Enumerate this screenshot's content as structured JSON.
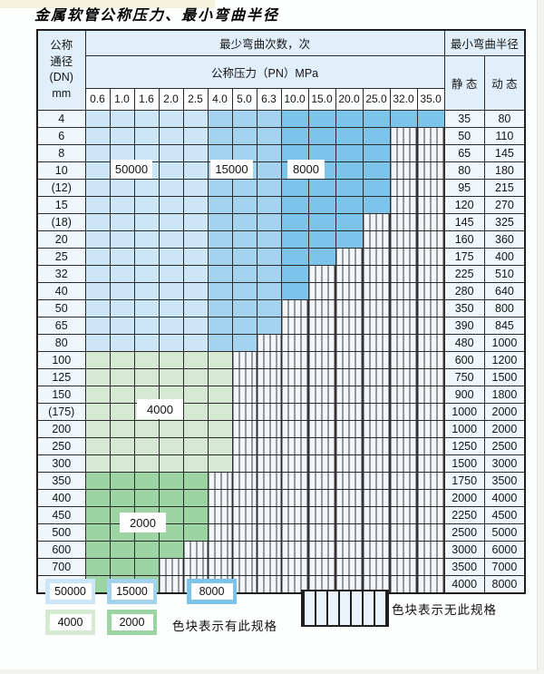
{
  "title": "金属软管公称压力、最小弯曲半径",
  "colors": {
    "blue_light": "#cde6f7",
    "blue_mid": "#a3d3ef",
    "blue_dark": "#7cc4e9",
    "green_light": "#d6e9d2",
    "green_dark": "#9dd4a3"
  },
  "table": {
    "header": {
      "dn_lines": [
        "公称",
        "通径",
        "(DN)",
        "mm"
      ],
      "bend_cycles": "最少弯曲次数，次",
      "pressure": "公称压力（PN）MPa",
      "min_radius": "最小弯曲半径",
      "static": "静 态",
      "dynamic": "动 态",
      "pressures": [
        "0.6",
        "1.0",
        "1.6",
        "2.0",
        "2.5",
        "4.0",
        "5.0",
        "6.3",
        "10.0",
        "15.0",
        "20.0",
        "25.0",
        "32.0",
        "35.0"
      ]
    },
    "rows": [
      {
        "dn": "4",
        "max": 13,
        "scheme": "blue",
        "static": "35",
        "dynamic": "80"
      },
      {
        "dn": "6",
        "max": 11,
        "scheme": "blue",
        "static": "50",
        "dynamic": "110"
      },
      {
        "dn": "8",
        "max": 11,
        "scheme": "blue",
        "static": "65",
        "dynamic": "145"
      },
      {
        "dn": "10",
        "max": 11,
        "scheme": "blue",
        "static": "80",
        "dynamic": "180"
      },
      {
        "dn": "(12)",
        "max": 11,
        "scheme": "blue",
        "static": "95",
        "dynamic": "215"
      },
      {
        "dn": "15",
        "max": 11,
        "scheme": "blue",
        "static": "120",
        "dynamic": "270"
      },
      {
        "dn": "(18)",
        "max": 10,
        "scheme": "blue",
        "static": "145",
        "dynamic": "325"
      },
      {
        "dn": "20",
        "max": 10,
        "scheme": "blue",
        "static": "160",
        "dynamic": "360"
      },
      {
        "dn": "25",
        "max": 9,
        "scheme": "blue",
        "static": "175",
        "dynamic": "400"
      },
      {
        "dn": "32",
        "max": 8,
        "scheme": "blue",
        "static": "225",
        "dynamic": "510"
      },
      {
        "dn": "40",
        "max": 8,
        "scheme": "blue",
        "static": "280",
        "dynamic": "640"
      },
      {
        "dn": "50",
        "max": 7,
        "scheme": "blue",
        "static": "350",
        "dynamic": "800"
      },
      {
        "dn": "65",
        "max": 7,
        "scheme": "blue",
        "static": "390",
        "dynamic": "845"
      },
      {
        "dn": "80",
        "max": 6,
        "scheme": "blue",
        "static": "480",
        "dynamic": "1000"
      },
      {
        "dn": "100",
        "max": 5,
        "scheme": "green-light",
        "static": "600",
        "dynamic": "1200"
      },
      {
        "dn": "125",
        "max": 5,
        "scheme": "green-light",
        "static": "750",
        "dynamic": "1500"
      },
      {
        "dn": "150",
        "max": 5,
        "scheme": "green-light",
        "static": "900",
        "dynamic": "1800"
      },
      {
        "dn": "(175)",
        "max": 5,
        "scheme": "green-light",
        "static": "1000",
        "dynamic": "2000"
      },
      {
        "dn": "200",
        "max": 5,
        "scheme": "green-light",
        "static": "1000",
        "dynamic": "2000"
      },
      {
        "dn": "250",
        "max": 5,
        "scheme": "green-light",
        "static": "1250",
        "dynamic": "2500"
      },
      {
        "dn": "300",
        "max": 5,
        "scheme": "green-light",
        "static": "1500",
        "dynamic": "3000"
      },
      {
        "dn": "350",
        "max": 4,
        "scheme": "green-dark",
        "static": "1750",
        "dynamic": "3500"
      },
      {
        "dn": "400",
        "max": 4,
        "scheme": "green-dark",
        "static": "2000",
        "dynamic": "4000"
      },
      {
        "dn": "450",
        "max": 4,
        "scheme": "green-dark",
        "static": "2250",
        "dynamic": "4500"
      },
      {
        "dn": "500",
        "max": 4,
        "scheme": "green-dark",
        "static": "2500",
        "dynamic": "5000"
      },
      {
        "dn": "600",
        "max": 3,
        "scheme": "green-dark",
        "static": "3000",
        "dynamic": "6000"
      },
      {
        "dn": "700",
        "max": 2,
        "scheme": "green-dark",
        "static": "3500",
        "dynamic": "7000"
      },
      {
        "dn": "800",
        "max": 2,
        "scheme": "green-dark",
        "static": "4000",
        "dynamic": "8000"
      }
    ]
  },
  "in_table_labels": {
    "b50000": "50000",
    "b15000": "15000",
    "b8000": "8000",
    "g4000": "4000",
    "g2000": "2000"
  },
  "legend": {
    "items": [
      {
        "label": "50000",
        "color_key": "blue_light"
      },
      {
        "label": "15000",
        "color_key": "blue_mid"
      },
      {
        "label": "8000",
        "color_key": "blue_dark"
      },
      {
        "label": "4000",
        "color_key": "green_light"
      },
      {
        "label": "2000",
        "color_key": "green_dark"
      }
    ],
    "has_spec": "色块表示有此规格",
    "no_spec": "色块表示无此规格"
  }
}
